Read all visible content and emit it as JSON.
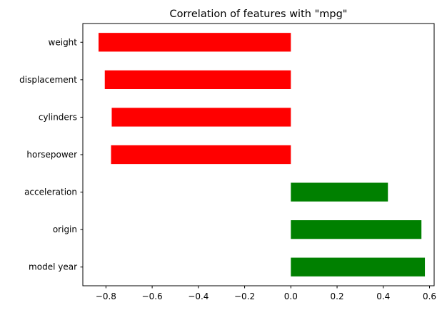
{
  "chart_data": {
    "type": "bar",
    "orientation": "horizontal",
    "title": "Correlation of features with \"mpg\"",
    "xlabel": "",
    "ylabel": "",
    "categories": [
      "model year",
      "origin",
      "acceleration",
      "horsepower",
      "cylinders",
      "displacement",
      "weight"
    ],
    "values": [
      0.58,
      0.565,
      0.42,
      -0.778,
      -0.775,
      -0.805,
      -0.832
    ],
    "xlim": [
      -0.9,
      0.62
    ],
    "xticks": [
      -0.8,
      -0.6,
      -0.4,
      -0.2,
      0.0,
      0.2,
      0.4,
      0.6
    ],
    "xtick_labels": [
      "−0.8",
      "−0.6",
      "−0.4",
      "−0.2",
      "0.0",
      "0.2",
      "0.4",
      "0.6"
    ],
    "grid": false,
    "legend": "none",
    "colors": {
      "negative": "#ff0000",
      "positive": "#008000",
      "axis": "#000000"
    }
  }
}
